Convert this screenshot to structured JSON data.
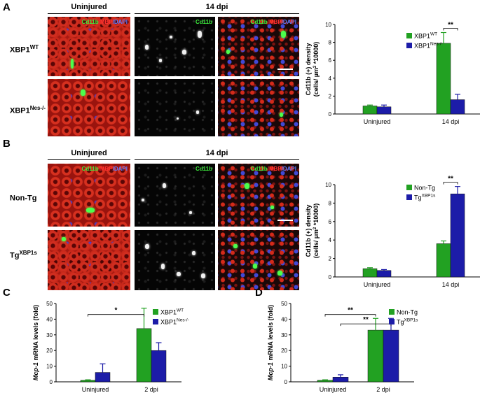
{
  "figure": {
    "panel_letters": [
      "A",
      "B",
      "C",
      "D"
    ],
    "colors": {
      "green": "#22a122",
      "blue": "#1c1ca8"
    },
    "panel_A": {
      "col_headers": [
        "Uninjured",
        "14 dpi"
      ],
      "row_labels": [
        {
          "base": "XBP1",
          "sup": "WT"
        },
        {
          "base": "XBP1",
          "sup": "Nes-/-"
        }
      ],
      "overlay_merge": {
        "g": "Cd11b",
        "r": "MBP",
        "b": "DAPI"
      },
      "overlay_single": "Cd11b"
    },
    "panel_B": {
      "col_headers": [
        "Uninjured",
        "14 dpi"
      ],
      "row_labels": [
        {
          "base": "Non-Tg",
          "sup": ""
        },
        {
          "base": "Tg",
          "sup": "XBP1s"
        }
      ],
      "overlay_merge": {
        "g": "Cd11b",
        "r": "MBP",
        "b": "DAPI"
      },
      "overlay_single": "Cd11b"
    }
  },
  "chart_data": [
    {
      "id": "A",
      "type": "bar",
      "categories": [
        "Uninjured",
        "14 dpi"
      ],
      "ylabel": "Cd11b (+) density (cells/ µm² *10000)",
      "ylabel_lines": [
        "Cd11b (+) density",
        "(cells/ µm",
        "2",
        " *10000)"
      ],
      "ylim": [
        0,
        10
      ],
      "yticks": [
        "0",
        "2",
        "4",
        "6",
        "8",
        "10"
      ],
      "series": [
        {
          "name": "XBP1",
          "sup": "WT",
          "color": "#22a122",
          "values": [
            0.9,
            7.9
          ],
          "errors": [
            0.1,
            1.2
          ]
        },
        {
          "name": "XBP1",
          "sup": "Nes-/-",
          "color": "#1c1ca8",
          "values": [
            0.8,
            1.6
          ],
          "errors": [
            0.2,
            0.6
          ]
        }
      ],
      "annotations": [
        {
          "text": "**",
          "category_index": 1
        }
      ]
    },
    {
      "id": "B",
      "type": "bar",
      "categories": [
        "Uninjured",
        "14 dpi"
      ],
      "ylabel": "Cd11b (+) density (cells/ µm² *10000)",
      "ylabel_lines": [
        "Cd11b (+) density",
        "(cells/ µm",
        "2",
        " *10000)"
      ],
      "ylim": [
        0,
        10
      ],
      "yticks": [
        "0",
        "2",
        "4",
        "6",
        "8",
        "10"
      ],
      "series": [
        {
          "name": "Non-Tg",
          "sup": "",
          "color": "#22a122",
          "values": [
            0.9,
            3.6
          ],
          "errors": [
            0.1,
            0.3
          ]
        },
        {
          "name": "Tg",
          "sup": "XBP1s",
          "color": "#1c1ca8",
          "values": [
            0.7,
            9.0
          ],
          "errors": [
            0.1,
            0.8
          ]
        }
      ],
      "annotations": [
        {
          "text": "**",
          "category_index": 1
        }
      ]
    },
    {
      "id": "C",
      "type": "bar",
      "categories": [
        "Uninjured",
        "2 dpi"
      ],
      "ylabel_parts": [
        "Mcp-1",
        " mRNA levels (fold)"
      ],
      "ylim": [
        0,
        50
      ],
      "yticks": [
        "0",
        "10",
        "20",
        "30",
        "40",
        "50"
      ],
      "series": [
        {
          "name": "XBP1",
          "sup": "WT",
          "color": "#22a122",
          "values": [
            1,
            34
          ],
          "errors": [
            0.3,
            13
          ]
        },
        {
          "name": "XBP1",
          "sup": "Nes-/-",
          "color": "#1c1ca8",
          "values": [
            6,
            20
          ],
          "errors": [
            5.5,
            5
          ]
        }
      ],
      "brackets": [
        {
          "text": "*",
          "from": [
            0,
            0
          ],
          "to": [
            1,
            0
          ],
          "y": 43
        }
      ]
    },
    {
      "id": "D",
      "type": "bar",
      "categories": [
        "Uninjured",
        "2 dpi"
      ],
      "ylabel_parts": [
        "Mcp-1",
        " mRNA levels (fold)"
      ],
      "ylim": [
        0,
        50
      ],
      "yticks": [
        "0",
        "10",
        "20",
        "30",
        "40",
        "50"
      ],
      "series": [
        {
          "name": "Non-Tg",
          "sup": "",
          "color": "#22a122",
          "values": [
            1,
            33
          ],
          "errors": [
            0.3,
            7.5
          ]
        },
        {
          "name": "Tg",
          "sup": "XBP1s",
          "color": "#1c1ca8",
          "values": [
            3,
            33
          ],
          "errors": [
            1.5,
            7.5
          ]
        }
      ],
      "brackets": [
        {
          "text": "**",
          "from": [
            0,
            0
          ],
          "to": [
            1,
            0
          ],
          "y": 43
        },
        {
          "text": "**",
          "from": [
            0,
            1
          ],
          "to": [
            1,
            1
          ],
          "y": 37
        }
      ]
    }
  ]
}
